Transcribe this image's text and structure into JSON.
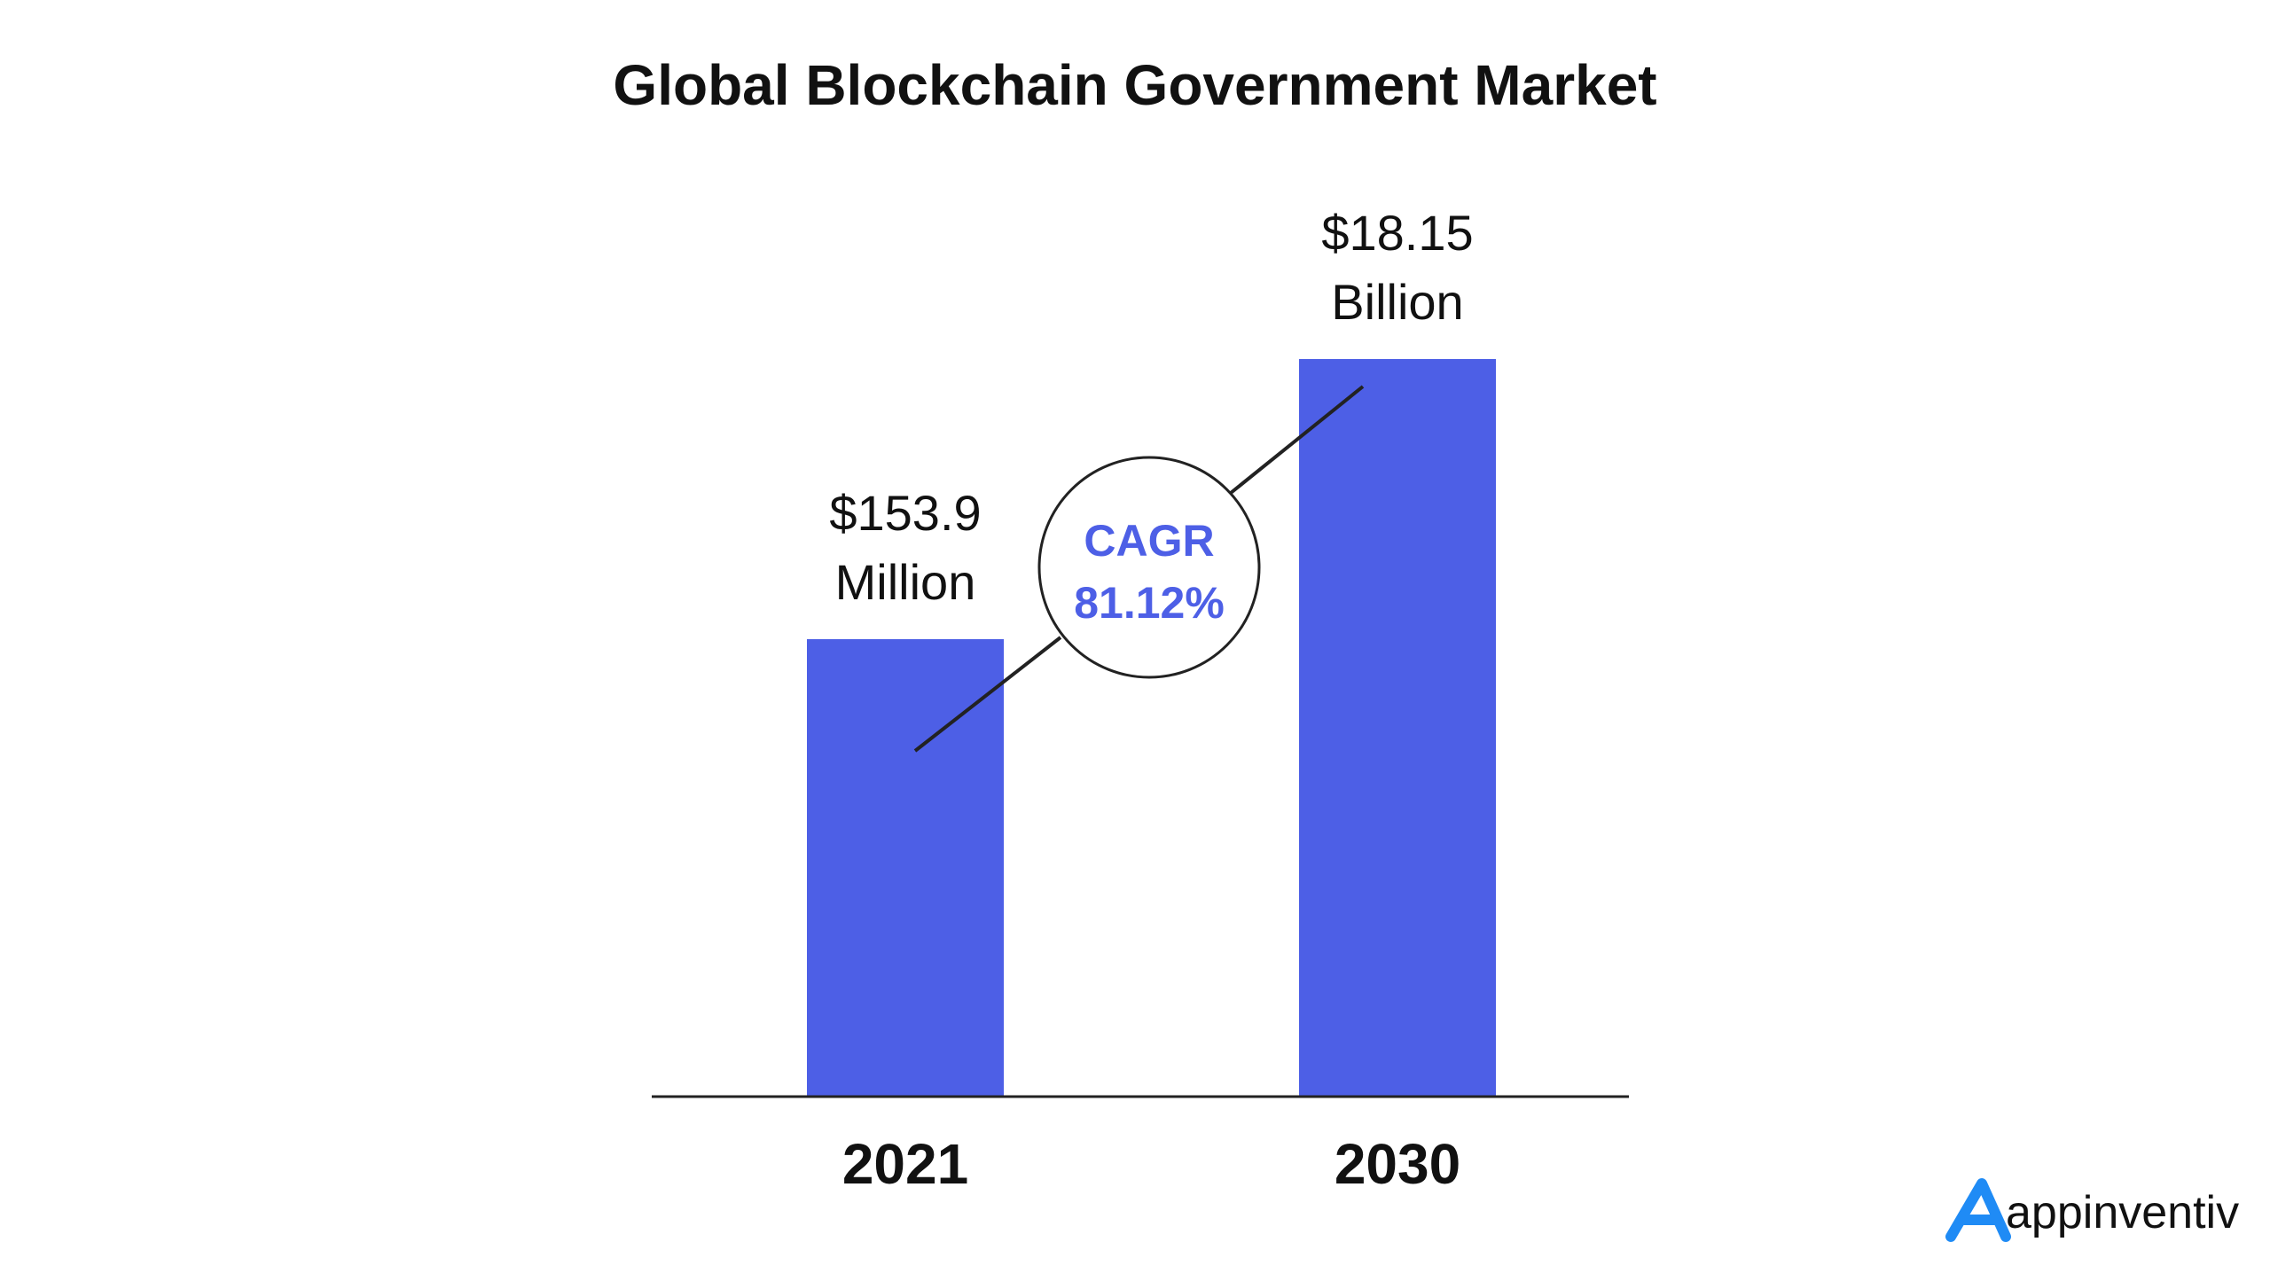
{
  "chart_data": {
    "type": "bar",
    "title": "Global Blockchain Government Market",
    "xlabel": "",
    "ylabel": "",
    "categories": [
      "2021",
      "2030"
    ],
    "values": [
      153.9,
      18150
    ],
    "unit": "USD Million",
    "data_labels": [
      {
        "line1": "$153.9",
        "line2": "Million"
      },
      {
        "line1": "$18.15",
        "line2": "Billion"
      }
    ],
    "annotation": {
      "line1": "CAGR",
      "line2": "81.12%"
    },
    "grid": false,
    "legend": "none"
  },
  "brand": {
    "name": "appinventiv"
  },
  "colors": {
    "bar": "#4d5fe6",
    "annotation_text": "#4d5fe6",
    "text": "#111111",
    "axis": "#222222",
    "brand_icon": "#1f8bf5"
  }
}
